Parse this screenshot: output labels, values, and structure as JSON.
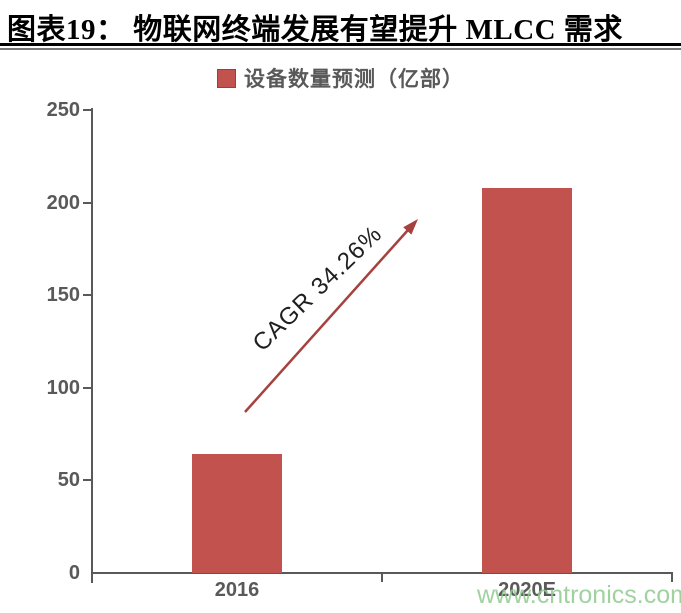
{
  "page": {
    "title": "图表19： 物联网终端发展有望提升 MLCC 需求",
    "watermark": "www.cntronics.com"
  },
  "legend": {
    "label": "设备数量预测（亿部）",
    "swatch_color": "#C2524D"
  },
  "chart_data": {
    "type": "bar",
    "title": "物联网终端发展有望提升 MLCC 需求",
    "categories": [
      "2016",
      "2020E"
    ],
    "series": [
      {
        "name": "设备数量预测（亿部）",
        "values": [
          64,
          208
        ]
      }
    ],
    "xlabel": "",
    "ylabel": "",
    "ylim": [
      0,
      250
    ],
    "yticks": [
      0,
      50,
      100,
      150,
      200,
      250
    ],
    "grid": false,
    "legend_position": "top-center",
    "bar_color": "#C2524D",
    "axis_color": "#595959",
    "annotation": {
      "text": "CAGR 34.26%",
      "arrow_color": "#A6423E"
    }
  }
}
